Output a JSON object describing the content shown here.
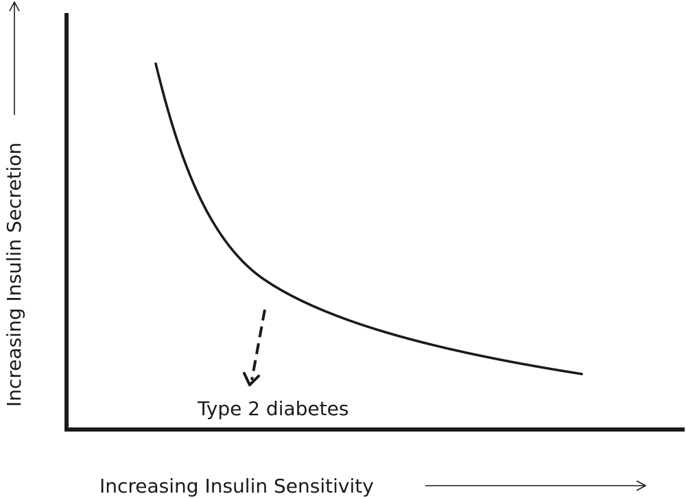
{
  "x_axis": {
    "label": "Increasing Insulin Sensitivity"
  },
  "y_axis": {
    "label": "Increasing Insulin Secretion"
  },
  "annotation": {
    "text": "Type 2 diabetes"
  },
  "colors": {
    "ink": "#1a1a1a",
    "background": "#ffffff"
  }
}
